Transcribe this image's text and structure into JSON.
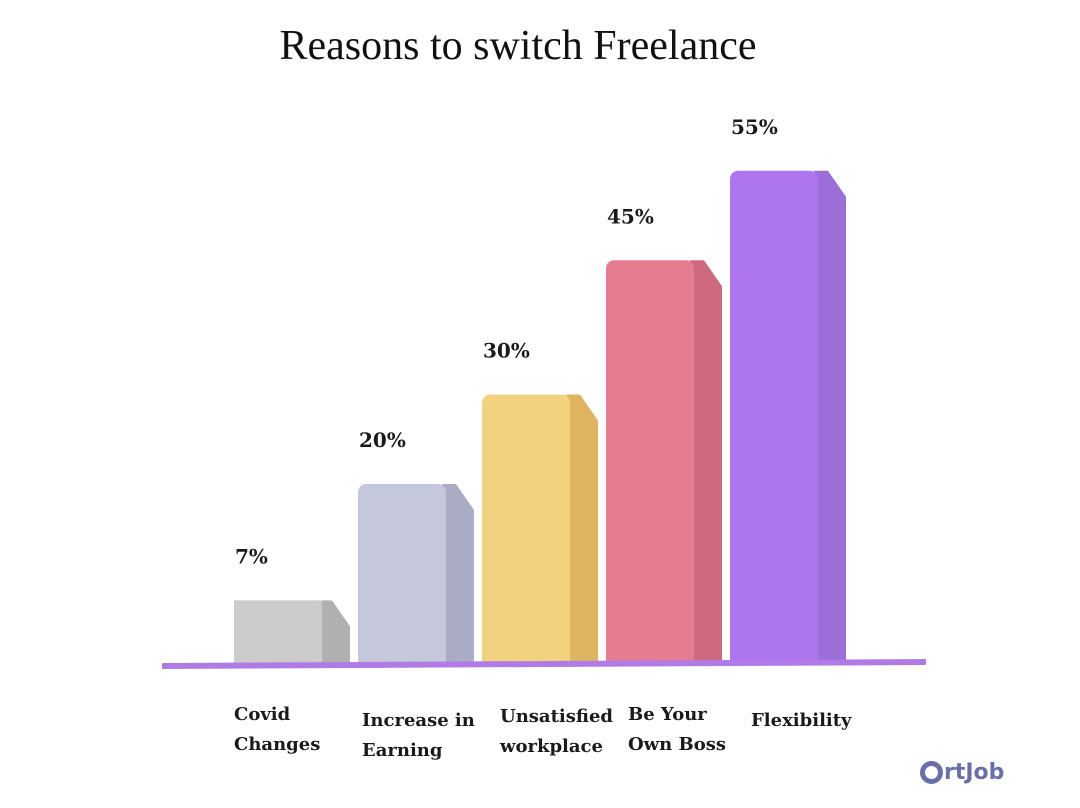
{
  "chart_data": {
    "type": "bar",
    "title": "Reasons to switch Freelance",
    "categories": [
      "Covid Changes",
      "Increase in Earning",
      "Unsatisfied workplace",
      "Be Your Own Boss",
      "Flexibility"
    ],
    "category_lines": [
      [
        "Covid",
        "Changes"
      ],
      [
        "Increase in",
        "Earning"
      ],
      [
        "Unsatisfied",
        "workplace"
      ],
      [
        "Be Your",
        "Own Boss"
      ],
      [
        "Flexibility"
      ]
    ],
    "values": [
      7,
      20,
      30,
      45,
      55
    ],
    "value_labels": [
      "7%",
      "20%",
      "30%",
      "45%",
      "55%"
    ],
    "unit": "%",
    "colors": [
      "#cccccc",
      "#c5c7da",
      "#f3d27f",
      "#e67c90",
      "#ad76ee"
    ],
    "side_colors": [
      "#b0b0b0",
      "#aaacc6",
      "#deb460",
      "#cd6a7f",
      "#9c6ed8"
    ],
    "baseline_color": "#b07be6",
    "grid": false,
    "legend": "none"
  },
  "brand": {
    "logo_text": "rtJob"
  }
}
